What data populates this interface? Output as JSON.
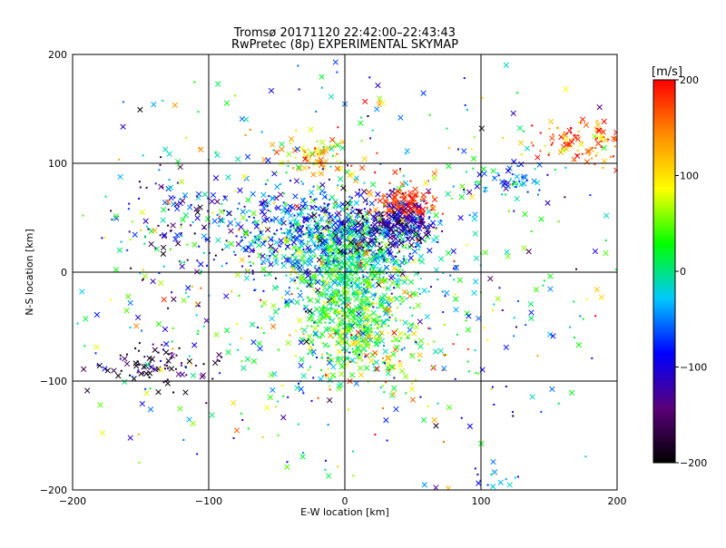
{
  "chart_data": {
    "type": "scatter",
    "title": "Tromsø 20171120 22:42:00–22:43:43",
    "subtitle": "RwPretec (8p) EXPERIMENTAL SKYMAP",
    "xlabel": "E-W location [km]",
    "ylabel": "N-S location [km]",
    "xlim": [
      -200,
      200
    ],
    "ylim": [
      -200,
      200
    ],
    "x_ticks": [
      -200,
      -100,
      0,
      100,
      200
    ],
    "y_ticks": [
      -200,
      -100,
      0,
      100,
      200
    ],
    "grid": true,
    "marker_types": [
      "dot",
      "cross"
    ],
    "colorbar": {
      "title": "[m/s]",
      "range": [
        -200,
        200
      ],
      "ticks": [
        200,
        100,
        0,
        -100,
        -200
      ],
      "colors": [
        "#000000",
        "#5a007a",
        "#0000ff",
        "#00c8ff",
        "#00ff00",
        "#ffff00",
        "#ff8c00",
        "#ff0000"
      ]
    },
    "clusters": [
      {
        "cx": 0,
        "cy": 20,
        "sx": 30,
        "sy": 25,
        "n": 700,
        "vmean": -10,
        "vsd": 40
      },
      {
        "cx": 5,
        "cy": -30,
        "sx": 20,
        "sy": 30,
        "n": 500,
        "vmean": 25,
        "vsd": 35
      },
      {
        "cx": -40,
        "cy": 40,
        "sx": 25,
        "sy": 20,
        "n": 250,
        "vmean": -80,
        "vsd": 40
      },
      {
        "cx": 45,
        "cy": 60,
        "sx": 10,
        "sy": 8,
        "n": 140,
        "vmean": 180,
        "vsd": 15
      },
      {
        "cx": 45,
        "cy": 45,
        "sx": 12,
        "sy": 8,
        "n": 120,
        "vmean": -110,
        "vsd": 25
      },
      {
        "cx": 25,
        "cy": 40,
        "sx": 20,
        "sy": 15,
        "n": 180,
        "vmean": -140,
        "vsd": 40
      },
      {
        "cx": -20,
        "cy": 105,
        "sx": 15,
        "sy": 8,
        "n": 80,
        "vmean": 120,
        "vsd": 50
      },
      {
        "cx": 175,
        "cy": 120,
        "sx": 18,
        "sy": 12,
        "n": 110,
        "vmean": 150,
        "vsd": 60
      },
      {
        "cx": 120,
        "cy": 85,
        "sx": 12,
        "sy": 8,
        "n": 50,
        "vmean": -50,
        "vsd": 40
      },
      {
        "cx": -140,
        "cy": -85,
        "sx": 20,
        "sy": 10,
        "n": 90,
        "vmean": -180,
        "vsd": 50
      },
      {
        "cx": -120,
        "cy": 45,
        "sx": 20,
        "sy": 30,
        "n": 120,
        "vmean": -90,
        "vsd": 70
      },
      {
        "cx": 20,
        "cy": -70,
        "sx": 30,
        "sy": 20,
        "n": 150,
        "vmean": 60,
        "vsd": 80
      },
      {
        "cx": 110,
        "cy": -190,
        "sx": 6,
        "sy": 8,
        "n": 18,
        "vmean": -60,
        "vsd": 30
      },
      {
        "cx": 0,
        "cy": 0,
        "sx": 110,
        "sy": 100,
        "n": 700,
        "vmean": 0,
        "vsd": 90
      }
    ]
  }
}
